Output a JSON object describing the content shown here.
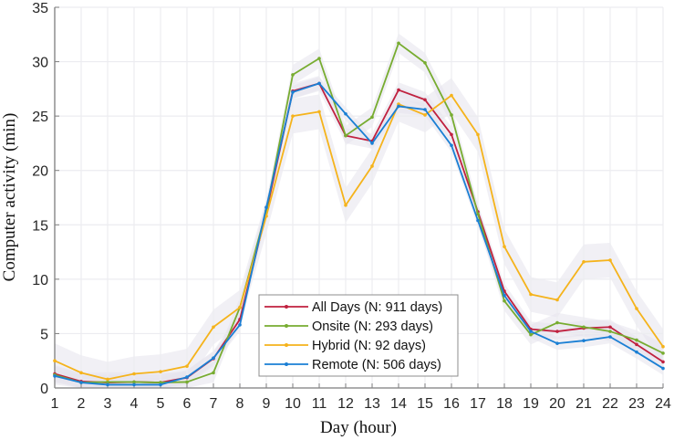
{
  "chart_data": {
    "type": "line",
    "title": "",
    "xlabel": "Day (hour)",
    "ylabel": "Computer activity (min)",
    "xlim": [
      1,
      24
    ],
    "ylim": [
      0,
      35
    ],
    "xticks": [
      1,
      2,
      3,
      4,
      5,
      6,
      7,
      8,
      9,
      10,
      11,
      12,
      13,
      14,
      15,
      16,
      17,
      18,
      19,
      20,
      21,
      22,
      23,
      24
    ],
    "yticks": [
      0,
      5,
      10,
      15,
      20,
      25,
      30,
      35
    ],
    "grid": true,
    "legend_position": "bottom-center",
    "x": [
      1,
      2,
      3,
      4,
      5,
      6,
      7,
      8,
      9,
      10,
      11,
      12,
      13,
      14,
      15,
      16,
      17,
      18,
      19,
      20,
      21,
      22,
      23,
      24
    ],
    "series": [
      {
        "name": "All Days (N: 911 days)",
        "color": "#c0213f",
        "band": 0.7,
        "values": [
          1.3,
          0.6,
          0.5,
          0.55,
          0.5,
          0.95,
          2.7,
          6.3,
          16.2,
          27.3,
          28.0,
          23.2,
          22.7,
          27.4,
          26.5,
          23.3,
          16.2,
          8.9,
          5.4,
          5.2,
          5.5,
          5.6,
          4.0,
          2.4
        ]
      },
      {
        "name": "Onsite (N: 293 days)",
        "color": "#77ac30",
        "band": 0.9,
        "values": [
          1.2,
          0.5,
          0.55,
          0.55,
          0.5,
          0.55,
          1.4,
          7.4,
          16.3,
          28.8,
          30.3,
          23.2,
          24.9,
          31.7,
          29.9,
          25.1,
          16.0,
          8.0,
          4.9,
          6.0,
          5.6,
          5.2,
          4.4,
          3.2
        ]
      },
      {
        "name": "Hybrid (N: 92 days)",
        "color": "#f5b31b",
        "band": 1.6,
        "values": [
          2.5,
          1.4,
          0.8,
          1.3,
          1.5,
          2.0,
          5.6,
          7.4,
          15.8,
          25.0,
          25.4,
          16.8,
          20.4,
          26.1,
          25.1,
          26.9,
          23.3,
          13.0,
          8.6,
          8.1,
          11.6,
          11.75,
          7.3,
          3.8
        ]
      },
      {
        "name": "Remote (N: 506 days)",
        "color": "#1a7fd4",
        "band": 0.6,
        "values": [
          1.1,
          0.5,
          0.3,
          0.3,
          0.3,
          1.0,
          2.75,
          5.8,
          16.6,
          27.2,
          28.0,
          25.2,
          22.5,
          25.9,
          25.6,
          22.3,
          15.4,
          8.5,
          5.2,
          4.1,
          4.35,
          4.7,
          3.3,
          1.8
        ]
      }
    ]
  }
}
